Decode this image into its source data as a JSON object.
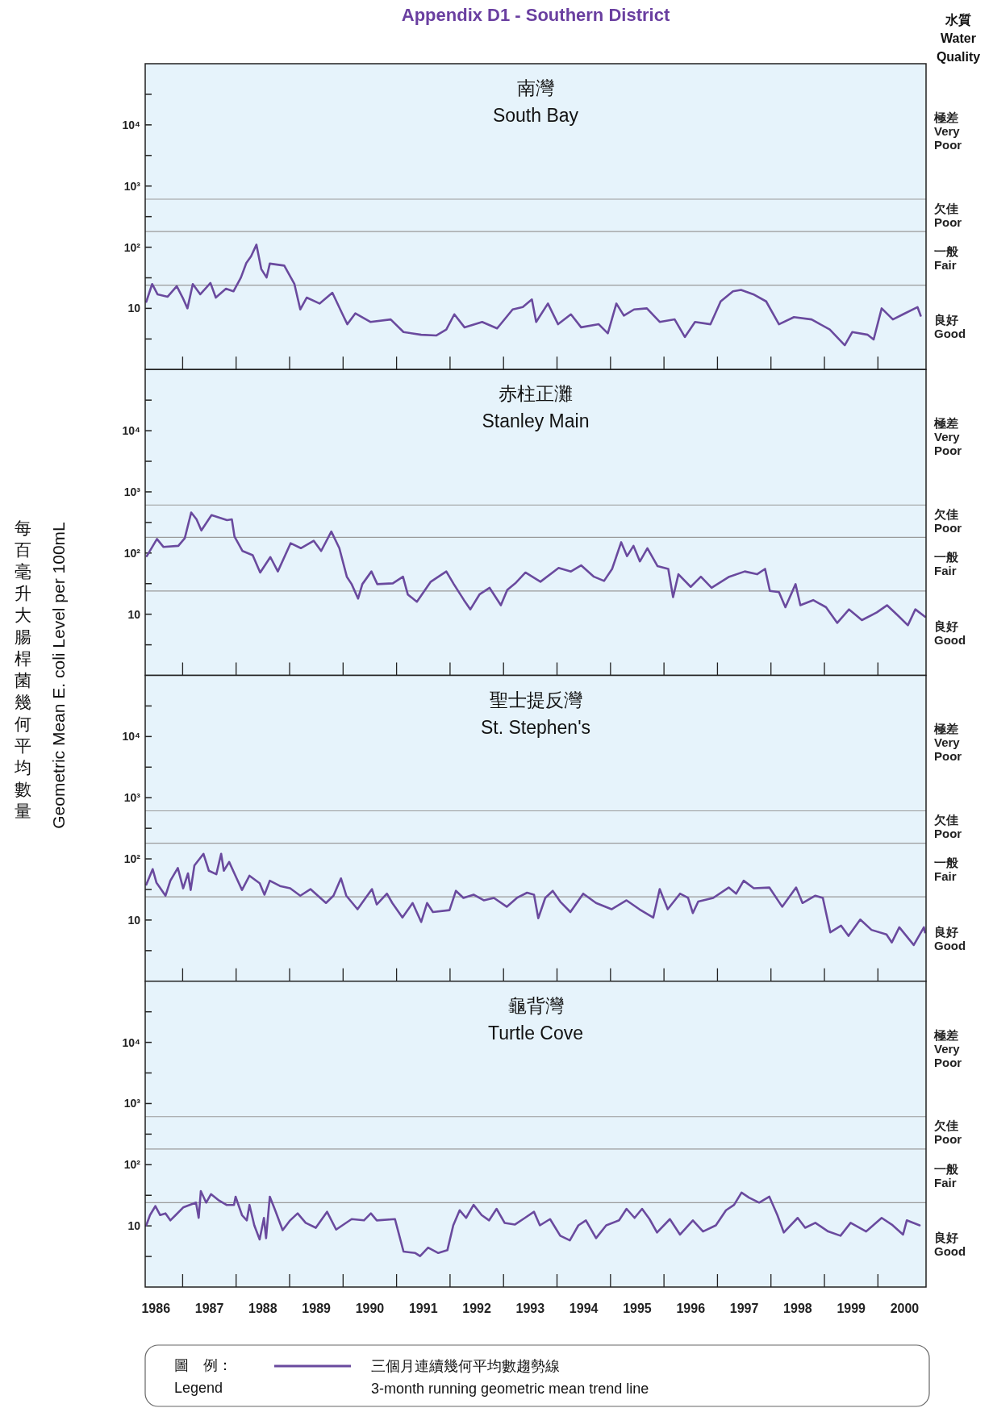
{
  "chart_data": [
    {
      "type": "line",
      "title": "Appendix D1 - Southern District",
      "subtitle": "南灣\nSouth Bay",
      "annotations": [
        "極差\nVery\nPoor",
        "欠佳\nPoor",
        "一般\nFair",
        "良好\nGood",
        "水質\nWater\nQuality",
        "每百毫升大腸桿菌幾何平均數量",
        "Geometric Mean E. coli Level per 100mL"
      ],
      "log": "y",
      "tick_labels": "y",
      "xlim": [
        1986.3,
        2000.9
      ],
      "ylim": [
        1,
        100000
      ],
      "yticks": [
        {
          "value": 3.16,
          "label": null
        },
        {
          "value": 10,
          "label": "10"
        },
        {
          "value": 31.6,
          "label": null
        },
        {
          "value": 100,
          "label": "10²"
        },
        {
          "value": 316,
          "label": null
        },
        {
          "value": 1000,
          "label": "10³"
        },
        {
          "value": 3162,
          "label": null
        },
        {
          "value": 10000,
          "label": "10⁴"
        },
        {
          "value": 31623,
          "label": null
        }
      ],
      "xticks": [
        {
          "value": 1987,
          "label": null
        },
        {
          "value": 1988,
          "label": null
        },
        {
          "value": 1989,
          "label": null
        },
        {
          "value": 1990,
          "label": null
        },
        {
          "value": 1991,
          "label": null
        },
        {
          "value": 1992,
          "label": null
        },
        {
          "value": 1993,
          "label": null
        },
        {
          "value": 1994,
          "label": null
        },
        {
          "value": 1995,
          "label": null
        },
        {
          "value": 1996,
          "label": null
        },
        {
          "value": 1997,
          "label": null
        },
        {
          "value": 1998,
          "label": null
        },
        {
          "value": 1999,
          "label": null
        },
        {
          "value": 2000,
          "label": null
        }
      ],
      "ref_lines": [
        {
          "axis": "y",
          "value": 610,
          "color": "#9a9a9a"
        },
        {
          "axis": "y",
          "value": 180,
          "color": "#9a9a9a"
        },
        {
          "axis": "y",
          "value": 24,
          "color": "#9a9a9a"
        }
      ],
      "series": [
        {
          "color": "#6a4a9e",
          "x": [
            1986.32,
            1986.43,
            1986.53,
            1986.72,
            1986.89,
            1987.0,
            1987.09,
            1987.19,
            1987.33,
            1987.52,
            1987.62,
            1987.81,
            1987.95,
            1988.09,
            1988.19,
            1988.28,
            1988.38,
            1988.47,
            1988.57,
            1988.63,
            1988.9,
            1989.09,
            1989.2,
            1989.32,
            1989.56,
            1989.8,
            1989.99,
            1990.08,
            1990.23,
            1990.51,
            1990.89,
            1991.13,
            1991.46,
            1991.74,
            1991.93,
            1992.08,
            1992.27,
            1992.6,
            1992.88,
            1993.17,
            1993.36,
            1993.53,
            1993.61,
            1993.83,
            1994.02,
            1994.26,
            1994.45,
            1994.78,
            1994.95,
            1995.11,
            1995.25,
            1995.44,
            1995.68,
            1995.92,
            1996.2,
            1996.39,
            1996.58,
            1996.87,
            1997.06,
            1997.29,
            1997.44,
            1997.67,
            1997.91,
            1998.15,
            1998.43,
            1998.76,
            1999.1,
            1999.38,
            1999.52,
            1999.81,
            1999.92,
            2000.07,
            2000.28,
            2000.47,
            2000.74,
            2000.8
          ],
          "values": [
            12.8,
            25,
            17,
            15.5,
            23,
            15,
            10,
            25,
            17,
            26,
            15,
            21,
            19,
            32,
            55,
            71,
            110,
            44,
            32,
            54,
            50,
            25,
            9.6,
            15,
            12,
            18,
            8,
            5.5,
            8.3,
            6,
            6.6,
            4.1,
            3.7,
            3.6,
            4.5,
            8,
            4.9,
            6,
            4.7,
            9.6,
            10.5,
            14,
            6,
            12,
            5.5,
            8,
            4.9,
            5.5,
            3.9,
            12,
            7.6,
            9.6,
            10,
            6,
            6.6,
            3.4,
            6,
            5.5,
            13,
            19,
            20,
            17,
            13,
            5.5,
            7.2,
            6.6,
            4.5,
            2.5,
            4.1,
            3.7,
            3.1,
            10,
            6.6,
            8,
            10.5,
            7.6
          ]
        }
      ]
    },
    {
      "type": "line",
      "subtitle": "赤柱正灘\nStanley Main",
      "annotations": [
        "極差\nVery\nPoor",
        "欠佳\nPoor",
        "一般\nFair",
        "良好\nGood"
      ],
      "log": "y",
      "tick_labels": "y",
      "xlim": [
        1986.3,
        2000.9
      ],
      "ylim": [
        1,
        100000
      ],
      "yticks": [
        {
          "value": 3.16,
          "label": null
        },
        {
          "value": 10,
          "label": "10"
        },
        {
          "value": 31.6,
          "label": null
        },
        {
          "value": 100,
          "label": "10²"
        },
        {
          "value": 316,
          "label": null
        },
        {
          "value": 1000,
          "label": "10³"
        },
        {
          "value": 3162,
          "label": null
        },
        {
          "value": 10000,
          "label": "10⁴"
        },
        {
          "value": 31623,
          "label": null
        }
      ],
      "xticks": [
        {
          "value": 1987,
          "label": null
        },
        {
          "value": 1988,
          "label": null
        },
        {
          "value": 1989,
          "label": null
        },
        {
          "value": 1990,
          "label": null
        },
        {
          "value": 1991,
          "label": null
        },
        {
          "value": 1992,
          "label": null
        },
        {
          "value": 1993,
          "label": null
        },
        {
          "value": 1994,
          "label": null
        },
        {
          "value": 1995,
          "label": null
        },
        {
          "value": 1996,
          "label": null
        },
        {
          "value": 1997,
          "label": null
        },
        {
          "value": 1998,
          "label": null
        },
        {
          "value": 1999,
          "label": null
        },
        {
          "value": 2000,
          "label": null
        }
      ],
      "ref_lines": [
        {
          "axis": "y",
          "value": 610,
          "color": "#9a9a9a"
        },
        {
          "axis": "y",
          "value": 180,
          "color": "#9a9a9a"
        },
        {
          "axis": "y",
          "value": 24,
          "color": "#9a9a9a"
        }
      ],
      "series": [
        {
          "color": "#6a4a9e",
          "x": [
            1986.33,
            1986.52,
            1986.64,
            1986.92,
            1987.04,
            1987.16,
            1987.26,
            1987.35,
            1987.54,
            1987.83,
            1987.92,
            1987.97,
            1988.12,
            1988.31,
            1988.45,
            1988.64,
            1988.78,
            1989.02,
            1989.21,
            1989.45,
            1989.59,
            1989.78,
            1989.93,
            1990.07,
            1990.16,
            1990.28,
            1990.36,
            1990.53,
            1990.64,
            1990.93,
            1991.12,
            1991.21,
            1991.38,
            1991.64,
            1991.93,
            1992.07,
            1992.26,
            1992.38,
            1992.55,
            1992.74,
            1992.95,
            1993.07,
            1993.22,
            1993.41,
            1993.69,
            1994.03,
            1994.26,
            1994.45,
            1994.69,
            1994.88,
            1995.03,
            1995.2,
            1995.31,
            1995.43,
            1995.55,
            1995.69,
            1995.88,
            1996.08,
            1996.17,
            1996.27,
            1996.5,
            1996.69,
            1996.89,
            1997.22,
            1997.51,
            1997.74,
            1997.89,
            1997.98,
            1998.15,
            1998.27,
            1998.46,
            1998.55,
            1998.79,
            1999.03,
            1999.24,
            1999.46,
            1999.7,
            1999.98,
            2000.17,
            2000.37,
            2000.56,
            2000.7,
            2000.88
          ],
          "values": [
            89,
            170,
            126,
            131,
            175,
            460,
            355,
            234,
            417,
            345,
            355,
            186,
            108,
            92,
            48,
            86,
            50,
            145,
            120,
            159,
            108,
            225,
            120,
            41,
            31,
            18,
            31,
            50,
            31,
            32,
            41,
            21,
            16,
            34,
            50,
            31,
            17,
            12,
            21,
            27,
            14,
            25,
            32,
            48,
            34,
            57,
            50,
            63,
            41,
            35,
            55,
            150,
            89,
            131,
            73,
            120,
            61,
            55,
            19,
            45,
            28,
            41,
            27,
            41,
            50,
            45,
            55,
            24,
            23,
            13,
            31,
            14,
            17,
            13,
            7.2,
            12,
            8,
            10.7,
            14,
            9.6,
            6.6,
            12,
            9.1
          ]
        }
      ]
    },
    {
      "type": "line",
      "subtitle": "聖士提反灣\nSt. Stephen's",
      "annotations": [
        "極差\nVery\nPoor",
        "欠佳\nPoor",
        "一般\nFair",
        "良好\nGood"
      ],
      "log": "y",
      "tick_labels": "y",
      "xlim": [
        1986.3,
        2000.9
      ],
      "ylim": [
        1,
        100000
      ],
      "yticks": [
        {
          "value": 3.16,
          "label": null
        },
        {
          "value": 10,
          "label": "10"
        },
        {
          "value": 31.6,
          "label": null
        },
        {
          "value": 100,
          "label": "10²"
        },
        {
          "value": 316,
          "label": null
        },
        {
          "value": 1000,
          "label": "10³"
        },
        {
          "value": 3162,
          "label": null
        },
        {
          "value": 10000,
          "label": "10⁴"
        },
        {
          "value": 31623,
          "label": null
        }
      ],
      "xticks": [
        {
          "value": 1987,
          "label": null
        },
        {
          "value": 1988,
          "label": null
        },
        {
          "value": 1989,
          "label": null
        },
        {
          "value": 1990,
          "label": null
        },
        {
          "value": 1991,
          "label": null
        },
        {
          "value": 1992,
          "label": null
        },
        {
          "value": 1993,
          "label": null
        },
        {
          "value": 1994,
          "label": null
        },
        {
          "value": 1995,
          "label": null
        },
        {
          "value": 1996,
          "label": null
        },
        {
          "value": 1997,
          "label": null
        },
        {
          "value": 1998,
          "label": null
        },
        {
          "value": 1999,
          "label": null
        },
        {
          "value": 2000,
          "label": null
        }
      ],
      "ref_lines": [
        {
          "axis": "y",
          "value": 610,
          "color": "#9a9a9a"
        },
        {
          "axis": "y",
          "value": 180,
          "color": "#9a9a9a"
        },
        {
          "axis": "y",
          "value": 24,
          "color": "#9a9a9a"
        }
      ],
      "series": [
        {
          "color": "#6a4a9e",
          "x": [
            1986.32,
            1986.44,
            1986.51,
            1986.68,
            1986.77,
            1986.91,
            1987.01,
            1987.1,
            1987.15,
            1987.22,
            1987.39,
            1987.49,
            1987.63,
            1987.72,
            1987.77,
            1987.87,
            1988.01,
            1988.11,
            1988.25,
            1988.44,
            1988.53,
            1988.63,
            1988.82,
            1989.01,
            1989.2,
            1989.39,
            1989.68,
            1989.82,
            1989.96,
            1990.06,
            1990.27,
            1990.54,
            1990.63,
            1990.82,
            1990.92,
            1991.11,
            1991.3,
            1991.46,
            1991.57,
            1991.68,
            1991.99,
            1992.11,
            1992.25,
            1992.44,
            1992.63,
            1992.82,
            1993.06,
            1993.25,
            1993.44,
            1993.57,
            1993.65,
            1993.78,
            1993.92,
            1994.06,
            1994.25,
            1994.49,
            1994.73,
            1995.02,
            1995.3,
            1995.54,
            1995.8,
            1995.92,
            1996.07,
            1996.3,
            1996.45,
            1996.54,
            1996.64,
            1996.92,
            1997.21,
            1997.35,
            1997.49,
            1997.68,
            1997.97,
            1998.21,
            1998.47,
            1998.59,
            1998.83,
            1998.97,
            1999.11,
            1999.31,
            1999.45,
            1999.67,
            1999.88,
            2000.16,
            2000.26,
            2000.4,
            2000.67,
            2000.86,
            2000.88
          ],
          "values": [
            38,
            68,
            41,
            25,
            44,
            71,
            33,
            58,
            31,
            78,
            121,
            64,
            56,
            121,
            64,
            89,
            48,
            31,
            53,
            40,
            26,
            44,
            36,
            33,
            25,
            32,
            19,
            25,
            48,
            25,
            15,
            32,
            18,
            27,
            19,
            11,
            19,
            9.3,
            19,
            13.5,
            14.5,
            30,
            23,
            26,
            21,
            23,
            16.5,
            23,
            28,
            26,
            10.7,
            23,
            30,
            20,
            13.5,
            27,
            19,
            15,
            21,
            15,
            11,
            32,
            15,
            27,
            23,
            13,
            20,
            23,
            34,
            27,
            44,
            33,
            34,
            16.5,
            34,
            19,
            25,
            23,
            6.3,
            8.1,
            5.5,
            10.2,
            6.9,
            5.8,
            4.3,
            7.6,
            3.9,
            7.6,
            6.3
          ]
        }
      ]
    },
    {
      "type": "line",
      "subtitle": "龜背灣\nTurtle Cove",
      "annotations": [
        "極差\nVery\nPoor",
        "欠佳\nPoor",
        "一般\nFair",
        "良好\nGood"
      ],
      "log": "y",
      "legend": "bottom",
      "legend_title": "圖　例：\nLegend",
      "xlim": [
        1986.3,
        2000.9
      ],
      "ylim": [
        1,
        100000
      ],
      "yticks": [
        {
          "value": 3.16,
          "label": null
        },
        {
          "value": 10,
          "label": "10"
        },
        {
          "value": 31.6,
          "label": null
        },
        {
          "value": 100,
          "label": "10²"
        },
        {
          "value": 316,
          "label": null
        },
        {
          "value": 1000,
          "label": "10³"
        },
        {
          "value": 3162,
          "label": null
        },
        {
          "value": 10000,
          "label": "10⁴"
        },
        {
          "value": 31623,
          "label": null
        }
      ],
      "xticks": [
        {
          "value": 1986.5,
          "label": "1986"
        },
        {
          "value": 1987,
          "label": null
        },
        {
          "value": 1987.5,
          "label": "1987"
        },
        {
          "value": 1988,
          "label": null
        },
        {
          "value": 1988.5,
          "label": "1988"
        },
        {
          "value": 1989,
          "label": null
        },
        {
          "value": 1989.5,
          "label": "1989"
        },
        {
          "value": 1990,
          "label": null
        },
        {
          "value": 1990.5,
          "label": "1990"
        },
        {
          "value": 1991,
          "label": null
        },
        {
          "value": 1991.5,
          "label": "1991"
        },
        {
          "value": 1992,
          "label": null
        },
        {
          "value": 1992.5,
          "label": "1992"
        },
        {
          "value": 1993,
          "label": null
        },
        {
          "value": 1993.5,
          "label": "1993"
        },
        {
          "value": 1994,
          "label": null
        },
        {
          "value": 1994.5,
          "label": "1994"
        },
        {
          "value": 1995,
          "label": null
        },
        {
          "value": 1995.5,
          "label": "1995"
        },
        {
          "value": 1996,
          "label": null
        },
        {
          "value": 1996.5,
          "label": "1996"
        },
        {
          "value": 1997,
          "label": null
        },
        {
          "value": 1997.5,
          "label": "1997"
        },
        {
          "value": 1998,
          "label": null
        },
        {
          "value": 1998.5,
          "label": "1998"
        },
        {
          "value": 1999,
          "label": null
        },
        {
          "value": 1999.5,
          "label": "1999"
        },
        {
          "value": 2000,
          "label": null
        },
        {
          "value": 2000.5,
          "label": "2000"
        }
      ],
      "ref_lines": [
        {
          "axis": "y",
          "value": 610,
          "color": "#9a9a9a"
        },
        {
          "axis": "y",
          "value": 180,
          "color": "#9a9a9a"
        },
        {
          "axis": "y",
          "value": 24,
          "color": "#9a9a9a"
        }
      ],
      "series": [
        {
          "name": "三個月連續幾何平均數趨勢線\n3-month running geometric mean trend line",
          "color": "#6a4a9e",
          "x": [
            1986.32,
            1986.39,
            1986.49,
            1986.58,
            1986.68,
            1986.77,
            1986.87,
            1987.01,
            1987.25,
            1987.3,
            1987.34,
            1987.44,
            1987.53,
            1987.68,
            1987.82,
            1987.96,
            1987.99,
            1988.11,
            1988.2,
            1988.25,
            1988.34,
            1988.44,
            1988.52,
            1988.56,
            1988.63,
            1988.73,
            1988.87,
            1989.01,
            1989.15,
            1989.3,
            1989.49,
            1989.7,
            1989.87,
            1990.16,
            1990.39,
            1990.52,
            1990.63,
            1990.97,
            1991.13,
            1991.35,
            1991.44,
            1991.59,
            1991.78,
            1991.95,
            1992.06,
            1992.18,
            1992.3,
            1992.44,
            1992.59,
            1992.73,
            1992.87,
            1993.02,
            1993.21,
            1993.4,
            1993.57,
            1993.68,
            1993.87,
            1994.06,
            1994.24,
            1994.4,
            1994.54,
            1994.73,
            1994.92,
            1995.16,
            1995.3,
            1995.45,
            1995.59,
            1995.73,
            1995.87,
            1996.11,
            1996.3,
            1996.54,
            1996.73,
            1996.97,
            1997.16,
            1997.31,
            1997.45,
            1997.59,
            1997.78,
            1997.97,
            1998.12,
            1998.24,
            1998.5,
            1998.64,
            1998.83,
            1999.07,
            1999.3,
            1999.49,
            1999.78,
            2000.07,
            2000.26,
            2000.47,
            2000.54,
            2000.78
          ],
          "values": [
            10.2,
            15,
            21,
            15,
            16,
            12.3,
            15,
            20,
            24,
            13.5,
            37,
            24,
            33,
            26,
            22,
            22,
            30,
            15,
            12.3,
            22,
            10.2,
            6,
            13.5,
            6.3,
            30,
            18,
            8.5,
            12.3,
            16,
            11.2,
            9.3,
            17,
            8.7,
            12.9,
            12.3,
            16,
            12.3,
            12.9,
            3.8,
            3.6,
            3.2,
            4.4,
            3.6,
            4,
            10.2,
            18,
            13.5,
            22,
            15,
            12.3,
            19,
            11.2,
            10.5,
            13.5,
            17,
            10.2,
            12.9,
            6.9,
            5.8,
            10.2,
            12.3,
            6.3,
            10.2,
            12.3,
            19,
            13.5,
            19,
            12.9,
            7.8,
            12.9,
            7.2,
            12.3,
            8.1,
            10.2,
            18,
            22,
            35,
            29,
            24,
            30,
            15,
            7.8,
            13.5,
            9.3,
            11.2,
            8.1,
            6.9,
            11.2,
            8.1,
            13.5,
            10.5,
            7.2,
            12.3,
            10.2
          ]
        }
      ]
    }
  ]
}
